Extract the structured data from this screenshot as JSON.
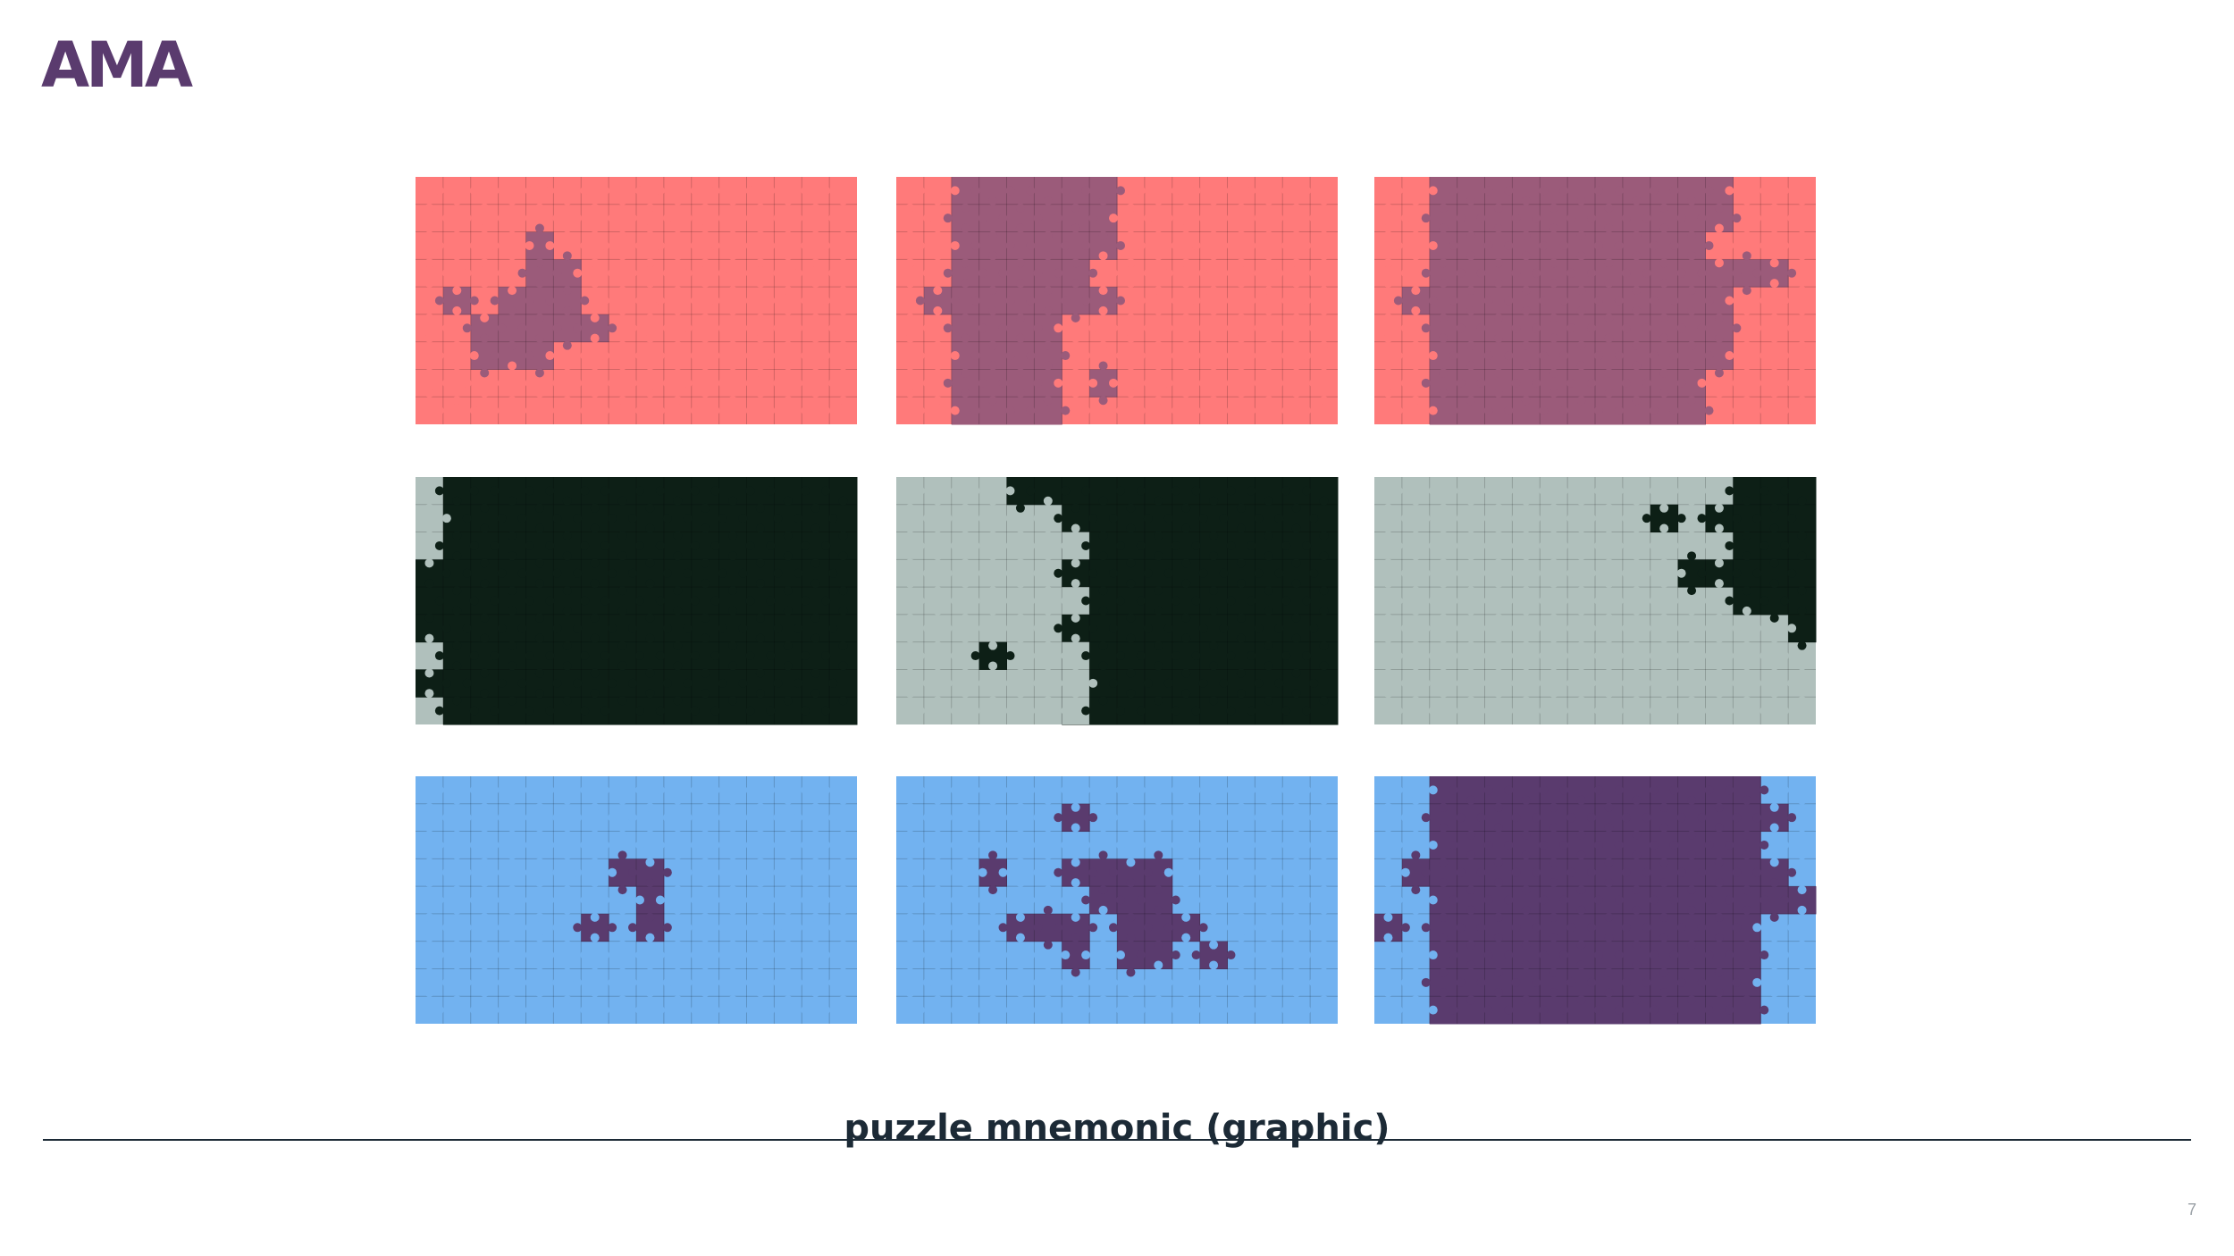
{
  "logo": "AMA",
  "caption": "puzzle mnemonic (graphic)",
  "page_number": "7"
}
